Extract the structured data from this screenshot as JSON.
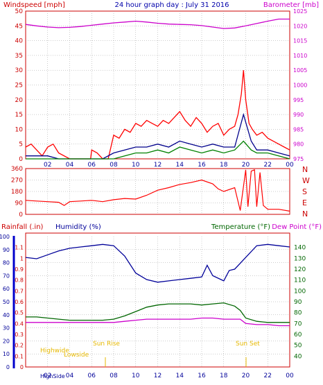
{
  "header": {
    "wind_label": "Windspeed [mph]",
    "title": "24 hour graph day : July 31 2016",
    "baro_label": "Barometer [mb]"
  },
  "mid_labels": {
    "rain": "Rainfall (.in)",
    "humidity": "Humidity (%)",
    "temperature": "Temperature (°F)",
    "dewpoint": "Dew Point (°F)"
  },
  "markers": {
    "highwide": "Highwide",
    "lowside": "Lowside",
    "sunrise": "Sun Rise",
    "sunset": "Sun Set",
    "bottom_label": "HighSide"
  },
  "colors": {
    "frame": "#cc0000",
    "wind_gust": "#ff0000",
    "wind_avg": "#00008b",
    "wind_low": "#008000",
    "barometer": "#cc00cc",
    "wind_dir": "#ff0000",
    "humidity": "#000099",
    "temperature": "#006600",
    "dewpoint": "#cc00cc",
    "rain": "#0000cc",
    "sun": "#e6b800",
    "grid": "#999999"
  },
  "chart_data": [
    {
      "type": "line",
      "name": "wind_barometer",
      "x_ticks": [
        "02",
        "04",
        "06",
        "08",
        "10",
        "12",
        "14",
        "16",
        "18",
        "20",
        "22",
        "00"
      ],
      "left_ticks": [
        0,
        5,
        10,
        15,
        20,
        25,
        30,
        35,
        40,
        45,
        50
      ],
      "left_ylim": [
        0,
        50
      ],
      "right_ticks": [
        975,
        980,
        985,
        990,
        995,
        1000,
        1005,
        1010,
        1015,
        1020,
        1025
      ],
      "right_ylim": [
        975,
        1025
      ],
      "series": [
        {
          "name": "Windspeed gust",
          "axis": "left",
          "x": [
            0,
            0.5,
            1,
            1.5,
            2,
            2.5,
            3,
            4,
            5,
            5.9,
            6,
            6.5,
            7,
            7.5,
            8,
            8.5,
            9,
            9.5,
            10,
            10.5,
            11,
            11.5,
            12,
            12.5,
            13,
            13.5,
            14,
            14.5,
            15,
            15.5,
            16,
            16.5,
            17,
            17.5,
            18,
            18.5,
            19,
            19.3,
            19.6,
            19.8,
            20,
            20.3,
            20.6,
            21,
            21.5,
            22,
            22.5,
            23,
            23.5,
            24
          ],
          "values": [
            4,
            5,
            3,
            1,
            4,
            5,
            2,
            0,
            0,
            0,
            3,
            2,
            0,
            0,
            8,
            7,
            10,
            9,
            12,
            11,
            13,
            12,
            11,
            13,
            12,
            14,
            16,
            13,
            11,
            14,
            12,
            9,
            11,
            12,
            8,
            10,
            11,
            15,
            22,
            30,
            20,
            12,
            10,
            8,
            9,
            7,
            6,
            5,
            4,
            3
          ]
        },
        {
          "name": "Windspeed average",
          "axis": "left",
          "x": [
            0,
            1,
            2,
            3,
            4,
            6,
            7,
            8,
            9,
            10,
            11,
            12,
            13,
            14,
            15,
            16,
            17,
            18,
            19,
            19.8,
            20.5,
            21,
            22,
            23,
            24
          ],
          "values": [
            1,
            1,
            1,
            0,
            0,
            0,
            0,
            2,
            3,
            4,
            4,
            5,
            4,
            6,
            5,
            4,
            5,
            4,
            4,
            15,
            6,
            3,
            3,
            2,
            1
          ]
        },
        {
          "name": "Windspeed low",
          "axis": "left",
          "x": [
            0,
            2,
            6,
            8,
            9,
            10,
            11,
            12,
            13,
            14,
            15,
            16,
            17,
            18,
            19,
            19.8,
            20.5,
            21,
            22,
            23,
            24
          ],
          "values": [
            0,
            0,
            0,
            0,
            1,
            2,
            2,
            3,
            2,
            4,
            3,
            2,
            3,
            2,
            3,
            6,
            3,
            2,
            2,
            1,
            0
          ]
        },
        {
          "name": "Barometer",
          "axis": "right",
          "x": [
            0,
            1,
            2,
            3,
            4,
            5,
            6,
            7,
            8,
            9,
            10,
            11,
            12,
            13,
            14,
            15,
            16,
            17,
            18,
            19,
            20,
            21,
            22,
            23,
            24
          ],
          "values": [
            1020.5,
            1020,
            1019.6,
            1019.4,
            1019.5,
            1019.8,
            1020.2,
            1020.6,
            1021,
            1021.3,
            1021.6,
            1021.3,
            1020.9,
            1020.6,
            1020.5,
            1020.4,
            1020.1,
            1019.6,
            1019.1,
            1019.3,
            1020,
            1020.8,
            1021.6,
            1022.3,
            1022.3
          ]
        }
      ]
    },
    {
      "type": "line",
      "name": "wind_direction",
      "y_ticks": [
        0,
        90,
        180,
        270,
        360
      ],
      "ylim": [
        0,
        360
      ],
      "direction_labels": [
        "N",
        "W",
        "S",
        "E",
        "N"
      ],
      "series": [
        {
          "name": "Wind direction",
          "x": [
            0,
            1,
            2,
            3,
            3.5,
            4,
            5,
            6,
            7,
            8,
            9,
            10,
            11,
            12,
            13,
            14,
            15,
            16,
            17,
            17.5,
            18,
            19,
            19.5,
            20,
            20.2,
            20.5,
            20.8,
            21,
            21.3,
            21.6,
            22,
            23,
            24
          ],
          "values": [
            110,
            105,
            100,
            95,
            70,
            100,
            105,
            110,
            100,
            115,
            125,
            120,
            150,
            190,
            210,
            235,
            250,
            270,
            240,
            200,
            180,
            210,
            30,
            350,
            60,
            340,
            350,
            60,
            330,
            70,
            40,
            40,
            25
          ]
        }
      ]
    },
    {
      "type": "line",
      "name": "humidity_temperature",
      "left_ticks": [
        0,
        10,
        20,
        30,
        40,
        50,
        60,
        70,
        80,
        90,
        100
      ],
      "left_ylim": [
        0,
        100
      ],
      "rain_ticks": [
        0,
        0.1,
        0.2,
        0.3,
        0.4,
        0.5,
        0.6,
        0.7,
        0.8,
        0.9,
        1,
        1.1
      ],
      "right_ticks": [
        40,
        50,
        60,
        70,
        80,
        90,
        100,
        110,
        120,
        130,
        140
      ],
      "right_ylim": [
        30,
        150
      ],
      "series": [
        {
          "name": "Humidity",
          "axis": "left",
          "x": [
            0,
            1,
            2,
            3,
            4,
            5,
            6,
            7,
            8,
            9,
            10,
            11,
            12,
            13,
            14,
            15,
            16,
            16.5,
            17,
            18,
            18.5,
            19,
            20,
            21,
            22,
            23,
            24
          ],
          "values": [
            84,
            83,
            86,
            89,
            91,
            92,
            93,
            94,
            93,
            85,
            72,
            67,
            65,
            66,
            67,
            68,
            69,
            78,
            70,
            66,
            74,
            75,
            84,
            93,
            94,
            93,
            92
          ]
        },
        {
          "name": "Temperature",
          "axis": "right",
          "x": [
            0,
            1,
            2,
            3,
            4,
            5,
            6,
            7,
            8,
            9,
            10,
            11,
            12,
            13,
            14,
            15,
            16,
            17,
            18,
            19,
            19.5,
            20,
            21,
            22,
            23,
            24
          ],
          "values": [
            76,
            76,
            75,
            74,
            73,
            73,
            73,
            73,
            74,
            77,
            81,
            85,
            87,
            88,
            88,
            88,
            87,
            88,
            89,
            86,
            82,
            75,
            72,
            71,
            71,
            71
          ],
          "unit": "°F"
        },
        {
          "name": "Dew Point",
          "axis": "right",
          "x": [
            0,
            1,
            2,
            3,
            4,
            5,
            6,
            7,
            8,
            9,
            10,
            11,
            12,
            13,
            14,
            15,
            16,
            17,
            18,
            19,
            19.5,
            20,
            21,
            22,
            23,
            24
          ],
          "values": [
            71,
            71,
            71,
            71,
            71,
            71,
            71,
            71,
            71,
            72,
            73,
            74,
            74,
            74,
            74,
            74,
            75,
            75,
            74,
            74,
            74,
            70,
            69,
            69,
            68,
            68
          ],
          "unit": "°F"
        }
      ]
    }
  ]
}
